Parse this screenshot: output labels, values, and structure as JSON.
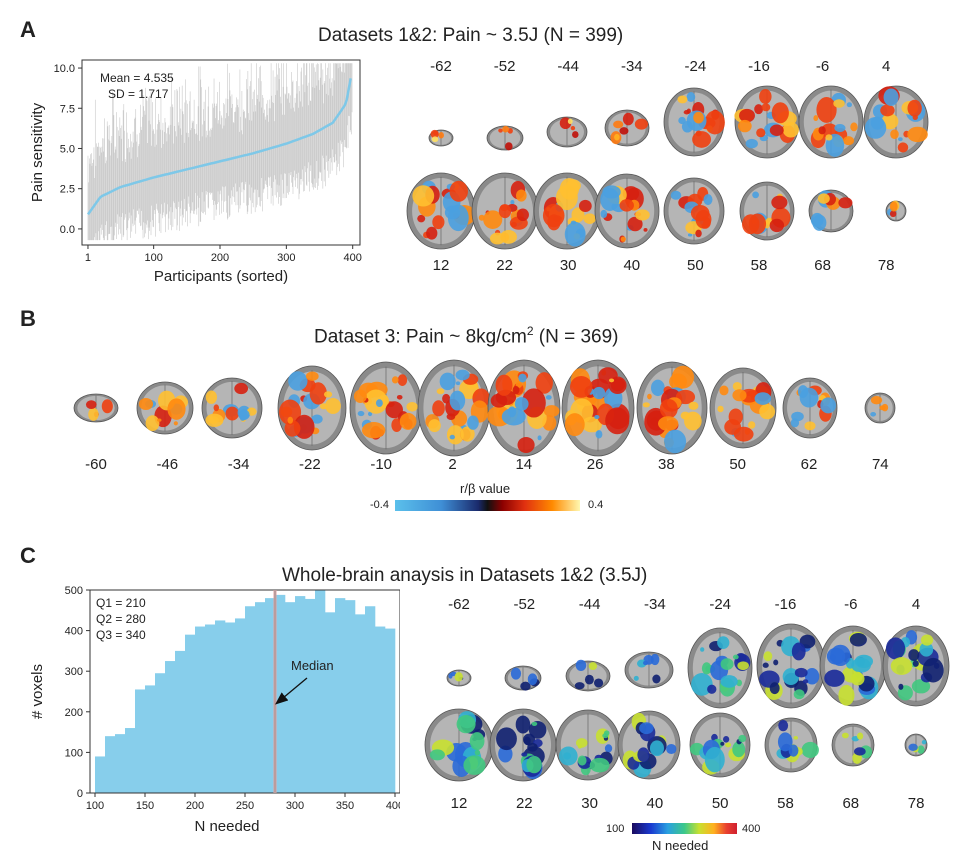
{
  "panelA": {
    "label": "A",
    "title": "Datasets 1&2: Pain ~ 3.5J (N = 399)",
    "stats": [
      "Mean = 4.535",
      "SD = 1.717"
    ],
    "top_slices": [
      "-62",
      "-52",
      "-44",
      "-34",
      "-24",
      "-16",
      "-6",
      "4"
    ],
    "bottom_slices": [
      "12",
      "22",
      "30",
      "40",
      "50",
      "58",
      "68",
      "78"
    ]
  },
  "panelB": {
    "label": "B",
    "title_prefix": "Dataset 3: Pain ~ 8kg/cm",
    "title_sup": "2",
    "title_suffix": " (N = 369)",
    "slices": [
      "-60",
      "-46",
      "-34",
      "-22",
      "-10",
      "2",
      "14",
      "26",
      "38",
      "50",
      "62",
      "74"
    ],
    "colorbar": {
      "title": "r/β value",
      "min": "-0.4",
      "max": "0.4"
    }
  },
  "panelC": {
    "label": "C",
    "title": "Whole-brain anaysis in Datasets 1&2 (3.5J)",
    "stats": [
      "Q1 = 210",
      "Q2 = 280",
      "Q3 = 340"
    ],
    "annotation": "Median",
    "top_slices": [
      "-62",
      "-52",
      "-44",
      "-34",
      "-24",
      "-16",
      "-6",
      "4"
    ],
    "bottom_slices": [
      "12",
      "22",
      "30",
      "40",
      "50",
      "58",
      "68",
      "78"
    ],
    "colorbar": {
      "title": "N needed",
      "min": "100",
      "max": "400"
    }
  },
  "chart_data": [
    {
      "type": "line",
      "title": "",
      "xlabel": "Participants (sorted)",
      "ylabel": "Pain sensitivity",
      "xlim": [
        1,
        399
      ],
      "ylim": [
        -1,
        10.5
      ],
      "xticks": [
        "1",
        "100",
        "200",
        "300",
        "400"
      ],
      "yticks": [
        "0.0",
        "2.5",
        "5.0",
        "7.5",
        "10.0"
      ],
      "x": [
        1,
        20,
        50,
        100,
        150,
        200,
        250,
        300,
        340,
        370,
        390,
        399
      ],
      "series": [
        {
          "values": [
            0.9,
            2.0,
            2.6,
            3.2,
            3.7,
            4.2,
            4.7,
            5.3,
            5.9,
            6.6,
            7.8,
            9.8
          ]
        }
      ]
    },
    {
      "type": "bar",
      "title": "",
      "xlabel": "N needed",
      "ylabel": "# voxels",
      "xlim": [
        95,
        405
      ],
      "ylim": [
        0,
        500
      ],
      "xticks": [
        "100",
        "150",
        "200",
        "250",
        "300",
        "350",
        "400"
      ],
      "yticks": [
        "0",
        "100",
        "200",
        "300",
        "400",
        "500"
      ],
      "bin_starts": [
        100,
        110,
        120,
        130,
        140,
        150,
        160,
        170,
        180,
        190,
        200,
        210,
        220,
        230,
        240,
        250,
        260,
        270,
        280,
        290,
        300,
        310,
        320,
        330,
        340,
        350,
        360,
        370,
        380,
        390
      ],
      "values": [
        90,
        140,
        145,
        160,
        255,
        265,
        295,
        325,
        350,
        390,
        410,
        415,
        425,
        420,
        430,
        460,
        470,
        480,
        488,
        470,
        485,
        478,
        500,
        445,
        480,
        475,
        440,
        460,
        410,
        405
      ]
    }
  ]
}
